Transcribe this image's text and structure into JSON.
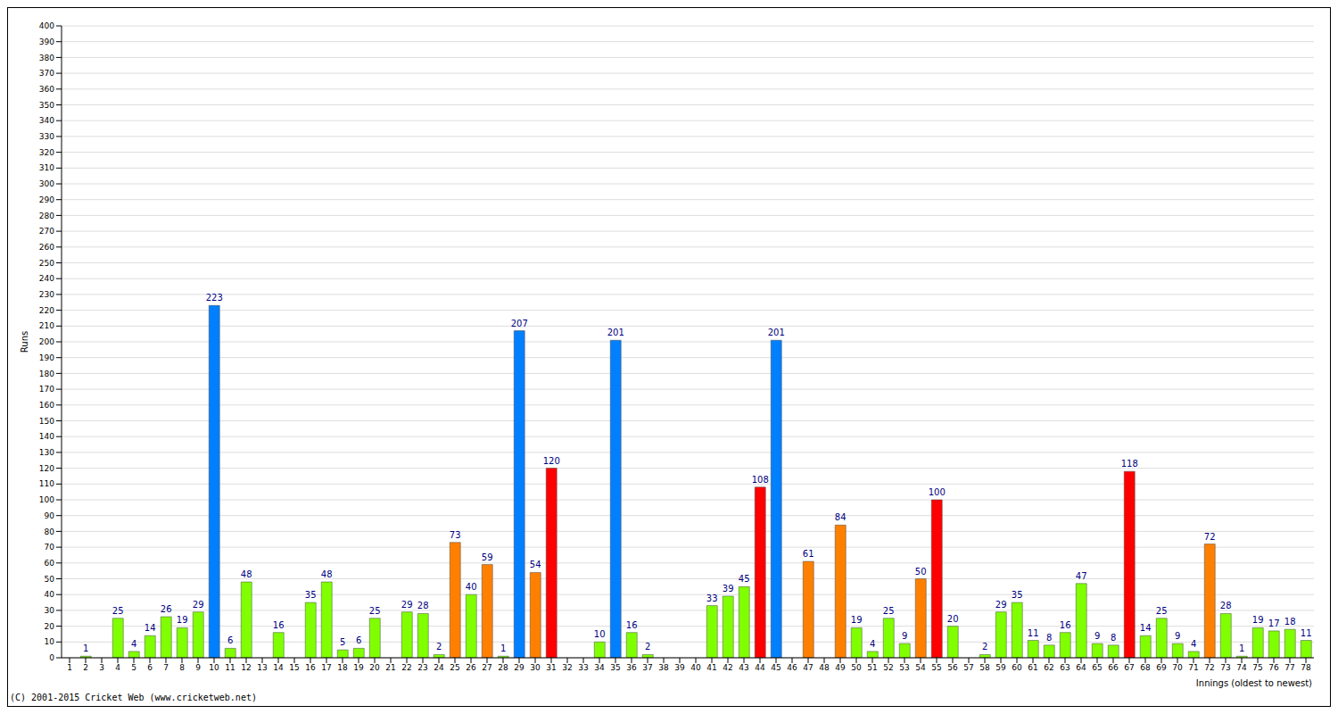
{
  "chart_data": {
    "type": "bar",
    "x_label": "Innings (oldest to newest)",
    "y_label": "Runs",
    "annotations": [
      "(C) 2001-2015 Cricket Web (www.cricketweb.net)"
    ],
    "categories": [
      "1",
      "2",
      "3",
      "4",
      "5",
      "6",
      "7",
      "8",
      "9",
      "10",
      "11",
      "12",
      "13",
      "14",
      "15",
      "16",
      "17",
      "18",
      "19",
      "20",
      "21",
      "22",
      "23",
      "24",
      "25",
      "26",
      "27",
      "28",
      "29",
      "30",
      "31",
      "32",
      "33",
      "34",
      "35",
      "36",
      "37",
      "38",
      "39",
      "40",
      "41",
      "42",
      "43",
      "44",
      "45",
      "46",
      "47",
      "48",
      "49",
      "50",
      "51",
      "52",
      "53",
      "54",
      "55",
      "56",
      "57",
      "58",
      "59",
      "60",
      "61",
      "62",
      "63",
      "64",
      "65",
      "66",
      "67",
      "68",
      "69",
      "70",
      "71",
      "72",
      "73",
      "74",
      "75",
      "76",
      "77",
      "78"
    ],
    "values": [
      0,
      1,
      0,
      25,
      4,
      14,
      26,
      19,
      29,
      223,
      6,
      48,
      0,
      16,
      0,
      35,
      48,
      5,
      6,
      25,
      0,
      29,
      28,
      2,
      73,
      40,
      59,
      1,
      207,
      54,
      120,
      0,
      0,
      10,
      201,
      16,
      2,
      0,
      0,
      0,
      33,
      39,
      45,
      108,
      201,
      0,
      61,
      0,
      84,
      19,
      4,
      25,
      9,
      50,
      100,
      20,
      0,
      2,
      29,
      35,
      11,
      8,
      16,
      47,
      9,
      8,
      118,
      14,
      25,
      9,
      4,
      72,
      28,
      1,
      19,
      17,
      18,
      11
    ],
    "colors": [
      "#80ff00",
      "#80ff00",
      "#80ff00",
      "#80ff00",
      "#80ff00",
      "#80ff00",
      "#80ff00",
      "#80ff00",
      "#80ff00",
      "#0080ff",
      "#80ff00",
      "#80ff00",
      "#80ff00",
      "#80ff00",
      "#80ff00",
      "#80ff00",
      "#80ff00",
      "#80ff00",
      "#80ff00",
      "#80ff00",
      "#80ff00",
      "#80ff00",
      "#80ff00",
      "#80ff00",
      "#ff8000",
      "#80ff00",
      "#ff8000",
      "#80ff00",
      "#0080ff",
      "#ff8000",
      "#ff0000",
      "#80ff00",
      "#80ff00",
      "#80ff00",
      "#0080ff",
      "#80ff00",
      "#80ff00",
      "#80ff00",
      "#80ff00",
      "#80ff00",
      "#80ff00",
      "#80ff00",
      "#80ff00",
      "#ff0000",
      "#0080ff",
      "#80ff00",
      "#ff8000",
      "#80ff00",
      "#ff8000",
      "#80ff00",
      "#80ff00",
      "#80ff00",
      "#80ff00",
      "#ff8000",
      "#ff0000",
      "#80ff00",
      "#80ff00",
      "#80ff00",
      "#80ff00",
      "#80ff00",
      "#80ff00",
      "#80ff00",
      "#80ff00",
      "#80ff00",
      "#80ff00",
      "#80ff00",
      "#ff0000",
      "#80ff00",
      "#80ff00",
      "#80ff00",
      "#80ff00",
      "#ff8000",
      "#80ff00",
      "#80ff00",
      "#80ff00",
      "#80ff00",
      "#80ff00",
      "#80ff00"
    ],
    "ylim": [
      0,
      400
    ],
    "yticks": [
      0,
      10,
      20,
      30,
      40,
      50,
      60,
      70,
      80,
      90,
      100,
      110,
      120,
      130,
      140,
      150,
      160,
      170,
      180,
      190,
      200,
      210,
      220,
      230,
      240,
      250,
      260,
      270,
      280,
      290,
      300,
      310,
      320,
      330,
      340,
      350,
      360,
      370,
      380,
      390,
      400
    ],
    "grid": true,
    "data_labels": true
  }
}
